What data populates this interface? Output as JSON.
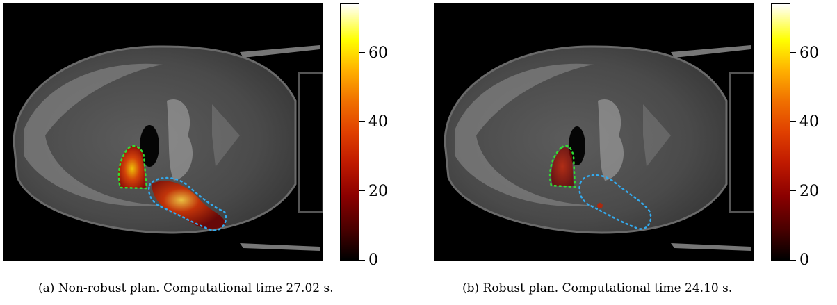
{
  "figures": [
    {
      "id": "a",
      "caption": "(a) Non-robust plan. Computational time 27.02 s.",
      "colorbar_ticks": [
        "60",
        "40",
        "20",
        "0"
      ],
      "dose_overlay": "strong"
    },
    {
      "id": "b",
      "caption": "(b) Robust plan. Computational time 24.10 s.",
      "colorbar_ticks": [
        "60",
        "40",
        "20",
        "0"
      ],
      "dose_overlay": "weak"
    }
  ],
  "colors": {
    "contour_green": "#33dd33",
    "contour_blue": "#33aaee",
    "colormap": [
      "#000000",
      "#8b0000",
      "#e04000",
      "#ffb000",
      "#ffff00",
      "#ffffff"
    ]
  }
}
